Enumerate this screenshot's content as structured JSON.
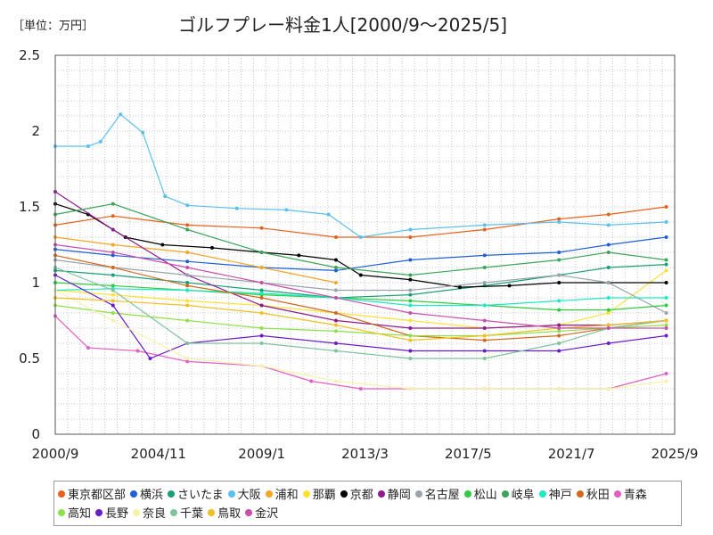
{
  "unit_label": "［単位：万円］",
  "chart_data": {
    "type": "line",
    "title": "ゴルフプレー料金1人[2000/9～2025/5]",
    "xlabel": "",
    "ylabel": "",
    "ylim": [
      0,
      2.5
    ],
    "y_ticks": [
      "0",
      "0.5",
      "1",
      "1.5",
      "2",
      "2.5"
    ],
    "x_ticks": [
      "2000/9",
      "2004/11",
      "2009/1",
      "2013/3",
      "2017/5",
      "2021/7",
      "2025/9"
    ],
    "grid": true,
    "legend_position": "bottom",
    "series": [
      {
        "name": "東京都区部",
        "color": "#e8601c",
        "values": [
          [
            2000.67,
            1.38
          ],
          [
            2003,
            1.44
          ],
          [
            2006,
            1.38
          ],
          [
            2009,
            1.36
          ],
          [
            2012,
            1.3
          ],
          [
            2015,
            1.3
          ],
          [
            2018,
            1.35
          ],
          [
            2021,
            1.42
          ],
          [
            2023,
            1.45
          ],
          [
            2025.33,
            1.5
          ]
        ]
      },
      {
        "name": "横浜",
        "color": "#1f5fd6",
        "values": [
          [
            2000.67,
            1.22
          ],
          [
            2003,
            1.18
          ],
          [
            2006,
            1.14
          ],
          [
            2009,
            1.1
          ],
          [
            2012,
            1.08
          ],
          [
            2015,
            1.15
          ],
          [
            2018,
            1.18
          ],
          [
            2021,
            1.2
          ],
          [
            2023,
            1.25
          ],
          [
            2025.33,
            1.3
          ]
        ]
      },
      {
        "name": "さいたま",
        "color": "#1a9e77",
        "values": [
          [
            2000.67,
            1.08
          ],
          [
            2003,
            1.05
          ],
          [
            2006,
            1.0
          ],
          [
            2009,
            0.95
          ],
          [
            2012,
            0.9
          ],
          [
            2015,
            0.92
          ],
          [
            2018,
            0.98
          ],
          [
            2021,
            1.05
          ],
          [
            2023,
            1.1
          ],
          [
            2025.33,
            1.12
          ]
        ]
      },
      {
        "name": "大阪",
        "color": "#5bc0eb",
        "values": [
          [
            2000.67,
            1.9
          ],
          [
            2002,
            1.9
          ],
          [
            2002.5,
            1.93
          ],
          [
            2003.3,
            2.11
          ],
          [
            2004.2,
            1.99
          ],
          [
            2005.1,
            1.57
          ],
          [
            2006,
            1.51
          ],
          [
            2008,
            1.49
          ],
          [
            2010,
            1.48
          ],
          [
            2011.7,
            1.45
          ],
          [
            2013,
            1.3
          ],
          [
            2015,
            1.35
          ],
          [
            2018,
            1.38
          ],
          [
            2021,
            1.4
          ],
          [
            2023,
            1.38
          ],
          [
            2025.33,
            1.4
          ]
        ]
      },
      {
        "name": "浦和",
        "color": "#f5a623",
        "values": [
          [
            2000.67,
            1.3
          ],
          [
            2003,
            1.25
          ],
          [
            2006,
            1.2
          ],
          [
            2009,
            1.1
          ],
          [
            2012,
            1.0
          ]
        ]
      },
      {
        "name": "那覇",
        "color": "#ffe135",
        "values": [
          [
            2000.67,
            0.95
          ],
          [
            2003,
            0.92
          ],
          [
            2006,
            0.88
          ],
          [
            2009,
            0.85
          ],
          [
            2012,
            0.8
          ],
          [
            2015,
            0.75
          ],
          [
            2018,
            0.7
          ],
          [
            2021,
            0.72
          ],
          [
            2023,
            0.8
          ],
          [
            2025.33,
            1.08
          ]
        ]
      },
      {
        "name": "京都",
        "color": "#000000",
        "values": [
          [
            2000.67,
            1.52
          ],
          [
            2002,
            1.45
          ],
          [
            2003.5,
            1.3
          ],
          [
            2005,
            1.25
          ],
          [
            2007,
            1.23
          ],
          [
            2009,
            1.2
          ],
          [
            2010.5,
            1.18
          ],
          [
            2012,
            1.15
          ],
          [
            2013,
            1.05
          ],
          [
            2015,
            1.02
          ],
          [
            2017,
            0.97
          ],
          [
            2019,
            0.98
          ],
          [
            2021,
            1.0
          ],
          [
            2023,
            1.0
          ],
          [
            2025.33,
            1.0
          ]
        ]
      },
      {
        "name": "静岡",
        "color": "#8e1b8e",
        "values": [
          [
            2000.67,
            1.6
          ],
          [
            2003,
            1.35
          ],
          [
            2006,
            1.05
          ],
          [
            2009,
            0.85
          ],
          [
            2012,
            0.75
          ],
          [
            2015,
            0.7
          ],
          [
            2018,
            0.7
          ],
          [
            2021,
            0.72
          ],
          [
            2023,
            0.72
          ],
          [
            2025.33,
            0.75
          ]
        ]
      },
      {
        "name": "名古屋",
        "color": "#9aa3ad",
        "values": [
          [
            2000.67,
            1.15
          ],
          [
            2003,
            1.1
          ],
          [
            2006,
            1.05
          ],
          [
            2009,
            1.0
          ],
          [
            2012,
            0.95
          ],
          [
            2015,
            0.95
          ],
          [
            2018,
            1.0
          ],
          [
            2021,
            1.05
          ],
          [
            2023,
            1.0
          ],
          [
            2025.33,
            0.8
          ]
        ]
      },
      {
        "name": "松山",
        "color": "#2ecc40",
        "values": [
          [
            2000.67,
            1.0
          ],
          [
            2003,
            0.98
          ],
          [
            2006,
            0.95
          ],
          [
            2009,
            0.92
          ],
          [
            2012,
            0.9
          ],
          [
            2015,
            0.88
          ],
          [
            2018,
            0.85
          ],
          [
            2021,
            0.82
          ],
          [
            2023,
            0.82
          ],
          [
            2025.33,
            0.85
          ]
        ]
      },
      {
        "name": "岐阜",
        "color": "#3da55a",
        "values": [
          [
            2000.67,
            1.45
          ],
          [
            2003,
            1.52
          ],
          [
            2006,
            1.35
          ],
          [
            2009,
            1.2
          ],
          [
            2012,
            1.1
          ],
          [
            2015,
            1.05
          ],
          [
            2018,
            1.1
          ],
          [
            2021,
            1.15
          ],
          [
            2023,
            1.2
          ],
          [
            2025.33,
            1.15
          ]
        ]
      },
      {
        "name": "神戸",
        "color": "#1de9c4",
        "values": [
          [
            2000.67,
            0.95
          ],
          [
            2003,
            0.96
          ],
          [
            2006,
            0.95
          ],
          [
            2009,
            0.93
          ],
          [
            2012,
            0.9
          ],
          [
            2015,
            0.85
          ],
          [
            2018,
            0.85
          ],
          [
            2021,
            0.88
          ],
          [
            2023,
            0.9
          ],
          [
            2025.33,
            0.9
          ]
        ]
      },
      {
        "name": "秋田",
        "color": "#d2691e",
        "values": [
          [
            2000.67,
            1.18
          ],
          [
            2003,
            1.1
          ],
          [
            2006,
            0.98
          ],
          [
            2009,
            0.9
          ],
          [
            2012,
            0.8
          ],
          [
            2015,
            0.65
          ],
          [
            2018,
            0.62
          ],
          [
            2021,
            0.65
          ],
          [
            2023,
            0.7
          ],
          [
            2025.33,
            0.75
          ]
        ]
      },
      {
        "name": "青森",
        "color": "#e45ec4",
        "values": [
          [
            2000.67,
            0.78
          ],
          [
            2002,
            0.57
          ],
          [
            2004,
            0.55
          ],
          [
            2006,
            0.48
          ],
          [
            2009,
            0.45
          ],
          [
            2011,
            0.35
          ],
          [
            2013,
            0.3
          ],
          [
            2015,
            0.3
          ],
          [
            2018,
            0.3
          ],
          [
            2021,
            0.3
          ],
          [
            2023,
            0.3
          ],
          [
            2025.33,
            0.4
          ]
        ]
      },
      {
        "name": "高知",
        "color": "#8ee04a",
        "values": [
          [
            2000.67,
            0.85
          ],
          [
            2003,
            0.8
          ],
          [
            2006,
            0.75
          ],
          [
            2009,
            0.7
          ],
          [
            2012,
            0.68
          ],
          [
            2015,
            0.65
          ],
          [
            2018,
            0.65
          ],
          [
            2021,
            0.68
          ],
          [
            2023,
            0.7
          ],
          [
            2025.33,
            0.72
          ]
        ]
      },
      {
        "name": "長野",
        "color": "#6a1bc9",
        "values": [
          [
            2000.67,
            1.05
          ],
          [
            2003,
            0.85
          ],
          [
            2004.5,
            0.5
          ],
          [
            2006,
            0.6
          ],
          [
            2009,
            0.65
          ],
          [
            2012,
            0.6
          ],
          [
            2015,
            0.55
          ],
          [
            2018,
            0.55
          ],
          [
            2021,
            0.55
          ],
          [
            2023,
            0.6
          ],
          [
            2025.33,
            0.65
          ]
        ]
      },
      {
        "name": "奈良",
        "color": "#f6f3a8",
        "values": [
          [
            2000.67,
            0.95
          ],
          [
            2003,
            0.75
          ],
          [
            2006,
            0.5
          ],
          [
            2009,
            0.45
          ],
          [
            2012,
            0.35
          ],
          [
            2015,
            0.3
          ],
          [
            2018,
            0.3
          ],
          [
            2021,
            0.3
          ],
          [
            2023,
            0.3
          ],
          [
            2025.33,
            0.35
          ]
        ]
      },
      {
        "name": "千葉",
        "color": "#7fc29b",
        "values": [
          [
            2000.67,
            1.1
          ],
          [
            2003,
            0.95
          ],
          [
            2006,
            0.6
          ],
          [
            2009,
            0.6
          ],
          [
            2012,
            0.55
          ],
          [
            2015,
            0.5
          ],
          [
            2018,
            0.5
          ],
          [
            2021,
            0.6
          ],
          [
            2023,
            0.7
          ],
          [
            2025.33,
            0.75
          ]
        ]
      },
      {
        "name": "鳥取",
        "color": "#f0c020",
        "values": [
          [
            2000.67,
            0.9
          ],
          [
            2003,
            0.88
          ],
          [
            2006,
            0.85
          ],
          [
            2009,
            0.8
          ],
          [
            2012,
            0.72
          ],
          [
            2015,
            0.62
          ],
          [
            2018,
            0.65
          ],
          [
            2021,
            0.7
          ],
          [
            2023,
            0.72
          ],
          [
            2025.33,
            0.75
          ]
        ]
      },
      {
        "name": "金沢",
        "color": "#c94fae",
        "values": [
          [
            2000.67,
            1.25
          ],
          [
            2003,
            1.2
          ],
          [
            2006,
            1.1
          ],
          [
            2009,
            1.0
          ],
          [
            2012,
            0.9
          ],
          [
            2015,
            0.8
          ],
          [
            2018,
            0.75
          ],
          [
            2021,
            0.7
          ],
          [
            2023,
            0.7
          ],
          [
            2025.33,
            0.7
          ]
        ]
      }
    ]
  }
}
